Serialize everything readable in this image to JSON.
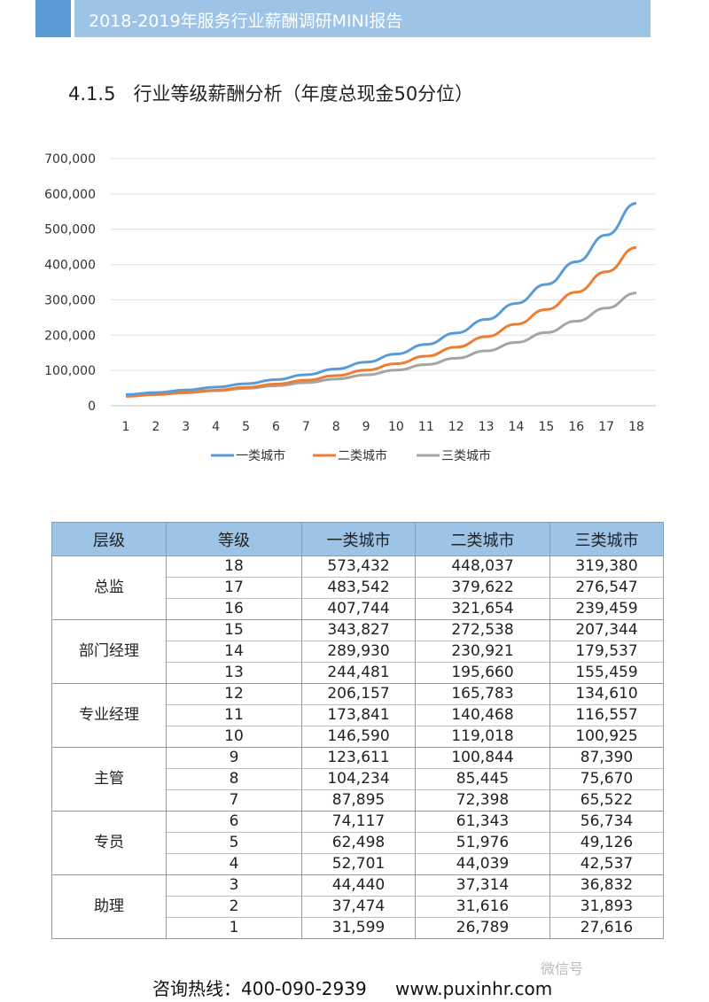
{
  "header": {
    "title": "2018-2019年服务行业薪酬调研MINI报告"
  },
  "section_title": "4.1.5   行业等级薪酬分析（年度总现金50分位）",
  "chart_data": {
    "type": "line",
    "x": [
      1,
      2,
      3,
      4,
      5,
      6,
      7,
      8,
      9,
      10,
      11,
      12,
      13,
      14,
      15,
      16,
      17,
      18
    ],
    "ylim": [
      0,
      700000
    ],
    "yticks": [
      "0",
      "100,000",
      "200,000",
      "300,000",
      "400,000",
      "500,000",
      "600,000",
      "700,000"
    ],
    "ytick_values": [
      0,
      100000,
      200000,
      300000,
      400000,
      500000,
      600000,
      700000
    ],
    "grid": true,
    "legend": "bottom",
    "series": [
      {
        "name": "一类城市",
        "color": "#5b9bd5",
        "values": [
          31599,
          37474,
          44440,
          52701,
          62498,
          74117,
          87895,
          104234,
          123611,
          146590,
          173841,
          206157,
          244481,
          289930,
          343827,
          407744,
          483542,
          573432
        ]
      },
      {
        "name": "二类城市",
        "color": "#ed7d31",
        "values": [
          26789,
          31616,
          37314,
          44039,
          51976,
          61343,
          72398,
          85445,
          100844,
          119018,
          140468,
          165783,
          195660,
          230921,
          272538,
          321654,
          379622,
          448037
        ]
      },
      {
        "name": "三类城市",
        "color": "#a5a5a5",
        "values": [
          27616,
          31893,
          36832,
          42537,
          49126,
          56734,
          65522,
          75670,
          87390,
          100925,
          116557,
          134610,
          155459,
          179537,
          207344,
          239459,
          276547,
          319380
        ]
      }
    ]
  },
  "table": {
    "headers": [
      "层级",
      "等级",
      "一类城市",
      "二类城市",
      "三类城市"
    ],
    "groups": [
      {
        "level": "总监",
        "rows": [
          [
            "18",
            "573,432",
            "448,037",
            "319,380"
          ],
          [
            "17",
            "483,542",
            "379,622",
            "276,547"
          ],
          [
            "16",
            "407,744",
            "321,654",
            "239,459"
          ]
        ]
      },
      {
        "level": "部门经理",
        "rows": [
          [
            "15",
            "343,827",
            "272,538",
            "207,344"
          ],
          [
            "14",
            "289,930",
            "230,921",
            "179,537"
          ],
          [
            "13",
            "244,481",
            "195,660",
            "155,459"
          ]
        ]
      },
      {
        "level": "专业经理",
        "rows": [
          [
            "12",
            "206,157",
            "165,783",
            "134,610"
          ],
          [
            "11",
            "173,841",
            "140,468",
            "116,557"
          ],
          [
            "10",
            "146,590",
            "119,018",
            "100,925"
          ]
        ]
      },
      {
        "level": "主管",
        "rows": [
          [
            "9",
            "123,611",
            "100,844",
            "87,390"
          ],
          [
            "8",
            "104,234",
            "85,445",
            "75,670"
          ],
          [
            "7",
            "87,895",
            "72,398",
            "65,522"
          ]
        ]
      },
      {
        "level": "专员",
        "rows": [
          [
            "6",
            "74,117",
            "61,343",
            "56,734"
          ],
          [
            "5",
            "62,498",
            "51,976",
            "49,126"
          ],
          [
            "4",
            "52,701",
            "44,039",
            "42,537"
          ]
        ]
      },
      {
        "level": "助理",
        "rows": [
          [
            "3",
            "44,440",
            "37,314",
            "36,832"
          ],
          [
            "2",
            "37,474",
            "31,616",
            "31,893"
          ],
          [
            "1",
            "31,599",
            "26,789",
            "27,616"
          ]
        ]
      }
    ]
  },
  "footer": {
    "hotline": "咨询热线：400-090-2939",
    "website": "www.puxinhr.com",
    "watermark": "微信号"
  }
}
